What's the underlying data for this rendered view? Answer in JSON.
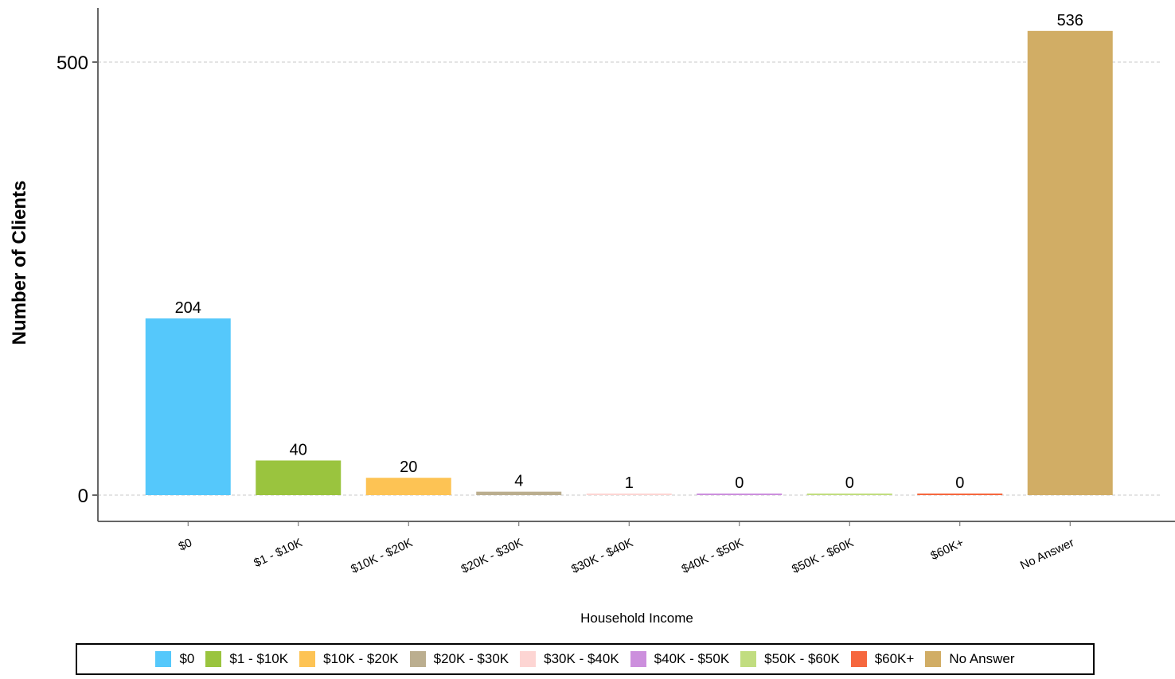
{
  "chart_data": {
    "type": "bar",
    "xlabel": "Household Income",
    "ylabel": "Number of Clients",
    "ylim": [
      0,
      560
    ],
    "yticks": [
      0,
      500
    ],
    "grid": "horizontal dashed",
    "legend_position": "bottom",
    "categories": [
      "$0",
      "$1 - $10K",
      "$10K - $20K",
      "$20K - $30K",
      "$30K - $40K",
      "$40K - $50K",
      "$50K - $60K",
      "$60K+",
      "No Answer"
    ],
    "values": [
      204,
      40,
      20,
      4,
      1,
      0,
      0,
      0,
      536
    ],
    "colors": [
      "#55c8fb",
      "#9ac43e",
      "#fdc354",
      "#bbae8f",
      "#fdd5d3",
      "#cc8fdd",
      "#c1dd80",
      "#f6673e",
      "#d1ad65"
    ]
  },
  "legend": {
    "items": [
      {
        "label": "$0",
        "color": "#55c8fb"
      },
      {
        "label": "$1 - $10K",
        "color": "#9ac43e"
      },
      {
        "label": "$10K - $20K",
        "color": "#fdc354"
      },
      {
        "label": "$20K - $30K",
        "color": "#bbae8f"
      },
      {
        "label": "$30K - $40K",
        "color": "#fdd5d3"
      },
      {
        "label": "$40K - $50K",
        "color": "#cc8fdd"
      },
      {
        "label": "$50K - $60K",
        "color": "#c1dd80"
      },
      {
        "label": "$60K+",
        "color": "#f6673e"
      },
      {
        "label": "No Answer",
        "color": "#d1ad65"
      }
    ]
  }
}
